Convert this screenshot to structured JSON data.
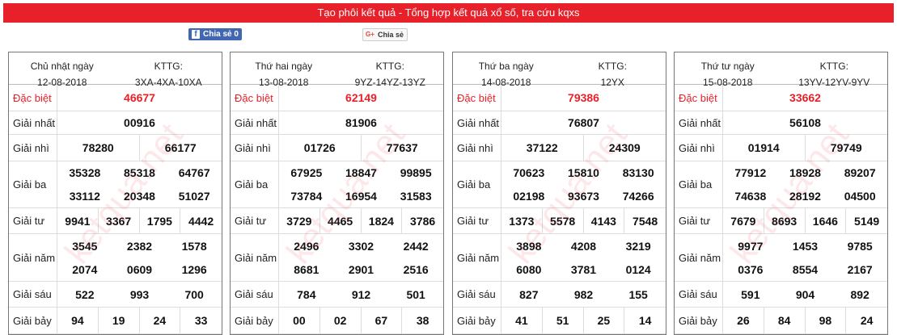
{
  "header": {
    "title": "Tạo phôi kết quả - Tổng hợp kết quả xổ số, tra cứu kqxs"
  },
  "share": {
    "facebook": "Chia sẻ",
    "facebook_count": "0",
    "google": "Chia sẻ"
  },
  "watermark": "ketqua.net",
  "tables": [
    {
      "day": "Chủ nhật ngày",
      "date": "12-08-2018",
      "kttg_label": "KTTG:",
      "kttg": "3XA-4XA-10XA",
      "prizes": [
        {
          "label": "Đặc biệt",
          "numbers": [
            "46677"
          ]
        },
        {
          "label": "Giải nhất",
          "numbers": [
            "00916"
          ]
        },
        {
          "label": "Giải nhì",
          "numbers": [
            "78280",
            "66177"
          ]
        },
        {
          "label": "Giải ba",
          "numbers": [
            "35328",
            "85318",
            "64767",
            "33112",
            "20348",
            "51027"
          ]
        },
        {
          "label": "Giải tư",
          "numbers": [
            "9941",
            "3367",
            "1795",
            "4442"
          ]
        },
        {
          "label": "Giải năm",
          "numbers": [
            "3545",
            "2382",
            "1578",
            "2074",
            "0609",
            "1296"
          ]
        },
        {
          "label": "Giải sáu",
          "numbers": [
            "522",
            "993",
            "700"
          ]
        },
        {
          "label": "Giải bảy",
          "numbers": [
            "94",
            "19",
            "24",
            "33"
          ]
        }
      ]
    },
    {
      "day": "Thứ hai ngày",
      "date": "13-08-2018",
      "kttg_label": "KTTG:",
      "kttg": "9YZ-14YZ-13YZ",
      "prizes": [
        {
          "label": "Đặc biệt",
          "numbers": [
            "62149"
          ]
        },
        {
          "label": "Giải nhất",
          "numbers": [
            "81906"
          ]
        },
        {
          "label": "Giải nhì",
          "numbers": [
            "01726",
            "77637"
          ]
        },
        {
          "label": "Giải ba",
          "numbers": [
            "67925",
            "18847",
            "99895",
            "73784",
            "16954",
            "31583"
          ]
        },
        {
          "label": "Giải tư",
          "numbers": [
            "3729",
            "4465",
            "1824",
            "3786"
          ]
        },
        {
          "label": "Giải năm",
          "numbers": [
            "2496",
            "3302",
            "2442",
            "8681",
            "2901",
            "2516"
          ]
        },
        {
          "label": "Giải sáu",
          "numbers": [
            "784",
            "912",
            "501"
          ]
        },
        {
          "label": "Giải bảy",
          "numbers": [
            "00",
            "02",
            "67",
            "38"
          ]
        }
      ]
    },
    {
      "day": "Thứ ba ngày",
      "date": "14-08-2018",
      "kttg_label": "KTTG:",
      "kttg": "12YX",
      "prizes": [
        {
          "label": "Đặc biệt",
          "numbers": [
            "79386"
          ]
        },
        {
          "label": "Giải nhất",
          "numbers": [
            "76807"
          ]
        },
        {
          "label": "Giải nhì",
          "numbers": [
            "37122",
            "24309"
          ]
        },
        {
          "label": "Giải ba",
          "numbers": [
            "70623",
            "15810",
            "83130",
            "02198",
            "93673",
            "74266"
          ]
        },
        {
          "label": "Giải tư",
          "numbers": [
            "1373",
            "5578",
            "4143",
            "7548"
          ]
        },
        {
          "label": "Giải năm",
          "numbers": [
            "3898",
            "4208",
            "3219",
            "6080",
            "3781",
            "0124"
          ]
        },
        {
          "label": "Giải sáu",
          "numbers": [
            "827",
            "982",
            "155"
          ]
        },
        {
          "label": "Giải bảy",
          "numbers": [
            "41",
            "51",
            "25",
            "14"
          ]
        }
      ]
    },
    {
      "day": "Thứ tư ngày",
      "date": "15-08-2018",
      "kttg_label": "KTTG:",
      "kttg": "13YV-12YV-9YV",
      "prizes": [
        {
          "label": "Đặc biệt",
          "numbers": [
            "33662"
          ]
        },
        {
          "label": "Giải nhất",
          "numbers": [
            "56108"
          ]
        },
        {
          "label": "Giải nhì",
          "numbers": [
            "01914",
            "79749"
          ]
        },
        {
          "label": "Giải ba",
          "numbers": [
            "77912",
            "18928",
            "89207",
            "74638",
            "28192",
            "04500"
          ]
        },
        {
          "label": "Giải tư",
          "numbers": [
            "7679",
            "8693",
            "1646",
            "5149"
          ]
        },
        {
          "label": "Giải năm",
          "numbers": [
            "9977",
            "1453",
            "9785",
            "0376",
            "8554",
            "2167"
          ]
        },
        {
          "label": "Giải sáu",
          "numbers": [
            "591",
            "904",
            "892"
          ]
        },
        {
          "label": "Giải bảy",
          "numbers": [
            "26",
            "84",
            "98",
            "24"
          ]
        }
      ]
    }
  ]
}
